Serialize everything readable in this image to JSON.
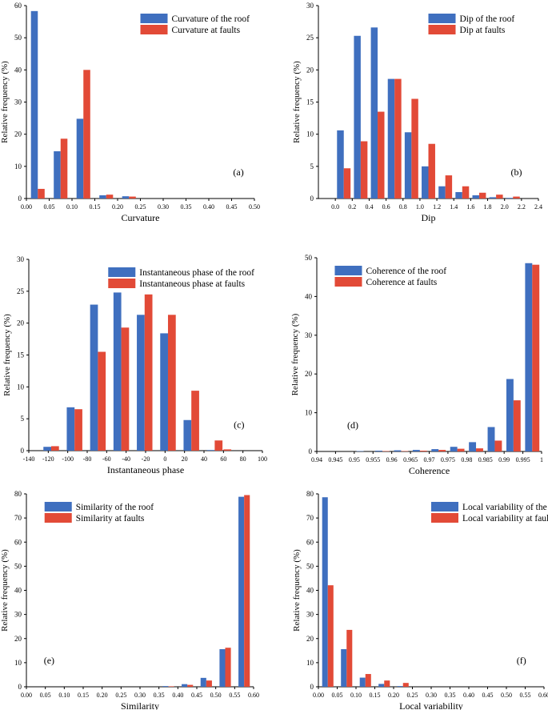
{
  "figure": {
    "series_colors": {
      "roof": "#3f6fbf",
      "faults": "#e24a37"
    }
  },
  "chart_data": [
    {
      "panel": "(a)",
      "type": "bar",
      "xlabel": "Curvature",
      "ylabel": "Relative frequency (%)",
      "categories": [
        0.025,
        0.075,
        0.125,
        0.175,
        0.225
      ],
      "xlim": [
        0,
        0.5
      ],
      "ylim": [
        0,
        60
      ],
      "xticks": [
        "0.00",
        "0.05",
        "0.10",
        "0.15",
        "0.20",
        "0.25",
        "0.30",
        "0.35",
        "0.40",
        "0.45",
        "0.50"
      ],
      "yticks": [
        "0",
        "10",
        "20",
        "30",
        "40",
        "50",
        "60"
      ],
      "xtick_values": [
        0,
        0.05,
        0.1,
        0.15,
        0.2,
        0.25,
        0.3,
        0.35,
        0.4,
        0.45,
        0.5
      ],
      "ytick_values": [
        0,
        10,
        20,
        30,
        40,
        50,
        60
      ],
      "bar_width": 0.015,
      "legend": "top-right",
      "series": [
        {
          "name": "Curvature of the roof",
          "values": [
            58.3,
            14.7,
            24.8,
            1.0,
            0.7
          ]
        },
        {
          "name": "Curvature at faults",
          "values": [
            3.0,
            18.6,
            40.0,
            1.2,
            0.6
          ]
        }
      ]
    },
    {
      "panel": "(b)",
      "type": "bar",
      "xlabel": "Dip",
      "ylabel": "Relative frequency (%)",
      "categories": [
        0.1,
        0.3,
        0.5,
        0.7,
        0.9,
        1.1,
        1.3,
        1.5,
        1.7,
        1.9,
        2.1
      ],
      "xlim": [
        -0.2,
        2.4
      ],
      "ylim": [
        0,
        30
      ],
      "xticks": [
        "0.0",
        "0.2",
        "0.4",
        "0.6",
        "0.8",
        "1.0",
        "1.2",
        "1.4",
        "1.6",
        "1.8",
        "2.0",
        "2.2",
        "2.4"
      ],
      "yticks": [
        "0",
        "5",
        "10",
        "15",
        "20",
        "25",
        "30"
      ],
      "xtick_values": [
        0,
        0.2,
        0.4,
        0.6,
        0.8,
        1.0,
        1.2,
        1.4,
        1.6,
        1.8,
        2.0,
        2.2,
        2.4
      ],
      "ytick_values": [
        0,
        5,
        10,
        15,
        20,
        25,
        30
      ],
      "bar_width": 0.08,
      "legend": "top-right",
      "series": [
        {
          "name": "Dip of the roof",
          "values": [
            10.6,
            25.3,
            26.6,
            18.6,
            10.3,
            5.0,
            1.9,
            1.0,
            0.5,
            0.2,
            0.1
          ]
        },
        {
          "name": "Dip at faults",
          "values": [
            4.7,
            8.9,
            13.5,
            18.6,
            15.5,
            8.5,
            3.6,
            1.9,
            0.9,
            0.6,
            0.3
          ]
        }
      ]
    },
    {
      "panel": "(c)",
      "type": "bar",
      "xlabel": "Instantaneous phase",
      "ylabel": "Relative frequency (%)",
      "categories": [
        -117,
        -93,
        -69,
        -45,
        -21,
        3,
        27,
        51
      ],
      "xlim": [
        -140,
        100
      ],
      "ylim": [
        0,
        30
      ],
      "xticks": [
        "-140",
        "-120",
        "-100",
        "-80",
        "-60",
        "-40",
        "-20",
        "0",
        "20",
        "40",
        "60",
        "80",
        "100"
      ],
      "yticks": [
        "0",
        "5",
        "10",
        "15",
        "20",
        "25",
        "30"
      ],
      "xtick_values": [
        -140,
        -120,
        -100,
        -80,
        -60,
        -40,
        -20,
        0,
        20,
        40,
        60,
        80,
        100
      ],
      "ytick_values": [
        0,
        5,
        10,
        15,
        20,
        25,
        30
      ],
      "bar_width": 8,
      "legend": "top-center",
      "series": [
        {
          "name": "Instantaneous  phase of the roof",
          "values": [
            0.6,
            6.8,
            22.9,
            24.8,
            21.3,
            18.4,
            4.8,
            0.1
          ]
        },
        {
          "name": "Instantaneous  phase at faults",
          "values": [
            0.7,
            6.5,
            15.5,
            19.3,
            24.5,
            21.3,
            9.4,
            1.6
          ]
        }
      ],
      "extra_bars": [
        {
          "x": 60,
          "value": 0.2,
          "series": 1
        }
      ]
    },
    {
      "panel": "(d)",
      "type": "bar",
      "xlabel": "Coherence",
      "ylabel": "Relative frequency (%)",
      "categories": [
        0.9525,
        0.9575,
        0.9625,
        0.9675,
        0.9725,
        0.9775,
        0.9825,
        0.9875,
        0.9925,
        0.9975
      ],
      "xlim": [
        0.94,
        1.0
      ],
      "ylim": [
        0,
        50
      ],
      "xticks": [
        "0.94",
        "0.945",
        "0.95",
        "0.955",
        "0.96",
        "0.965",
        "0.97",
        "0.975",
        "0.98",
        "0.985",
        "0.99",
        "0.995",
        "1"
      ],
      "yticks": [
        "0",
        "10",
        "20",
        "30",
        "40",
        "50"
      ],
      "xtick_values": [
        0.94,
        0.945,
        0.95,
        0.955,
        0.96,
        0.965,
        0.97,
        0.975,
        0.98,
        0.985,
        0.99,
        0.995,
        1.0
      ],
      "ytick_values": [
        0,
        10,
        20,
        30,
        40,
        50
      ],
      "bar_width": 0.0019,
      "legend": "top-left",
      "series": [
        {
          "name": "Coherence of the roof",
          "values": [
            0.1,
            0.2,
            0.3,
            0.4,
            0.6,
            1.2,
            2.4,
            6.3,
            18.7,
            48.6
          ]
        },
        {
          "name": "Coherence at faults",
          "values": [
            0.0,
            0.1,
            0.1,
            0.2,
            0.4,
            0.7,
            0.8,
            2.8,
            13.2,
            48.2
          ]
        }
      ]
    },
    {
      "panel": "(e)",
      "type": "bar",
      "xlabel": "Similarity",
      "ylabel": "Relative frequency (%)",
      "categories": [
        0.375,
        0.425,
        0.475,
        0.525,
        0.575
      ],
      "xlim": [
        0,
        0.6
      ],
      "ylim": [
        0,
        80
      ],
      "xticks": [
        "0.00",
        "0.05",
        "0.10",
        "0.15",
        "0.20",
        "0.25",
        "0.30",
        "0.35",
        "0.40",
        "0.45",
        "0.50",
        "0.55",
        "0.60"
      ],
      "yticks": [
        "0",
        "10",
        "20",
        "30",
        "40",
        "50",
        "60",
        "70",
        "80"
      ],
      "xtick_values": [
        0,
        0.05,
        0.1,
        0.15,
        0.2,
        0.25,
        0.3,
        0.35,
        0.4,
        0.45,
        0.5,
        0.55,
        0.6
      ],
      "ytick_values": [
        0,
        10,
        20,
        30,
        40,
        50,
        60,
        70,
        80
      ],
      "bar_width": 0.015,
      "legend": "top-left",
      "series": [
        {
          "name": "Similarity of the roof",
          "values": [
            0.3,
            1.1,
            3.7,
            15.6,
            78.8
          ]
        },
        {
          "name": "Similarity  at faults",
          "values": [
            0.2,
            0.8,
            2.6,
            16.2,
            79.5
          ]
        }
      ]
    },
    {
      "panel": "(f)",
      "type": "bar",
      "xlabel": "Local variability",
      "ylabel": "Relative frequency (%)",
      "categories": [
        0.025,
        0.075,
        0.125,
        0.175,
        0.225
      ],
      "xlim": [
        0,
        0.6
      ],
      "ylim": [
        0,
        80
      ],
      "xticks": [
        "0.00",
        "0.05",
        "0.10",
        "0.15",
        "0.20",
        "0.25",
        "0.30",
        "0.35",
        "0.40",
        "0.45",
        "0.50",
        "0.55",
        "0.60"
      ],
      "yticks": [
        "0",
        "10",
        "20",
        "30",
        "40",
        "50",
        "60",
        "70",
        "80"
      ],
      "xtick_values": [
        0,
        0.05,
        0.1,
        0.15,
        0.2,
        0.25,
        0.3,
        0.35,
        0.4,
        0.45,
        0.5,
        0.55,
        0.6
      ],
      "ytick_values": [
        0,
        10,
        20,
        30,
        40,
        50,
        60,
        70,
        80
      ],
      "bar_width": 0.015,
      "legend": "top-right",
      "series": [
        {
          "name": "Local variability of the roof",
          "values": [
            78.6,
            15.6,
            3.8,
            1.2,
            0.3
          ]
        },
        {
          "name": "Local variability at faults",
          "values": [
            42.1,
            23.6,
            5.3,
            2.6,
            1.6
          ]
        }
      ]
    }
  ]
}
